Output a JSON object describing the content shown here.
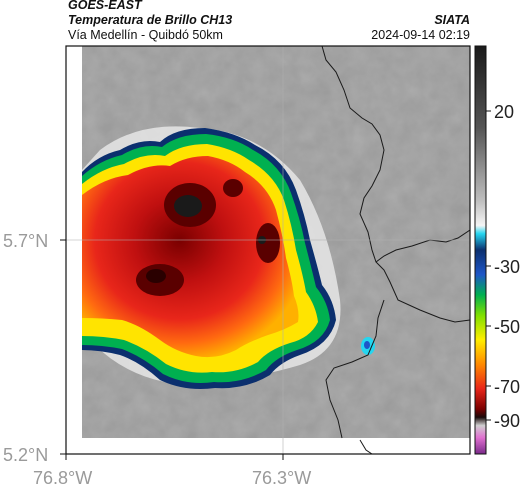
{
  "header": {
    "satellite": "GOES-EAST",
    "product": "Temperatura de Brillo CH13",
    "region": "Vía Medellín - Quibdó 50km",
    "organization": "SIATA",
    "timestamp": "2024-09-14 02:19"
  },
  "axes": {
    "lon_ticks": [
      "76.8°W",
      "76.3°W"
    ],
    "lat_ticks": [
      "5.7°N",
      "5.2°N"
    ]
  },
  "colorbar": {
    "tick_labels": [
      "20",
      "-30",
      "-50",
      "-70",
      "-90"
    ]
  },
  "colors": {
    "background_gray": "#9a9a9a",
    "outline": "#0b2f6e",
    "warm_edge": "#00b050",
    "yellow": "#ffee00",
    "red": "#e8261a",
    "dark_red": "#7a0000",
    "black": "#1a1a1a"
  }
}
